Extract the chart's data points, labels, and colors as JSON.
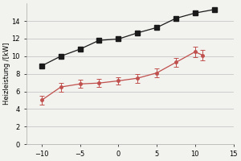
{
  "black_x": [
    -10,
    -7.5,
    -5,
    -2.5,
    0,
    2.5,
    5,
    7.5,
    10,
    12.5
  ],
  "black_y": [
    8.9,
    10.0,
    10.8,
    11.8,
    11.95,
    12.65,
    13.25,
    14.3,
    14.9,
    15.3
  ],
  "black_color": "#1a1a1a",
  "black_marker": "s",
  "black_markersize": 4,
  "red_x": [
    -10,
    -7.5,
    -5,
    -2.5,
    0,
    2.5,
    5,
    7.5,
    10,
    11
  ],
  "red_y": [
    5.0,
    6.5,
    6.85,
    6.95,
    7.2,
    7.5,
    8.1,
    9.3,
    10.5,
    10.1
  ],
  "red_yerr_low": [
    0.5,
    0.5,
    0.45,
    0.45,
    0.4,
    0.5,
    0.5,
    0.5,
    0.6,
    0.6
  ],
  "red_yerr_high": [
    0.5,
    0.5,
    0.45,
    0.45,
    0.4,
    0.5,
    0.5,
    0.5,
    0.6,
    0.6
  ],
  "red_color": "#c0504d",
  "red_marker": "o",
  "red_markersize": 2.5,
  "ylabel": "Heizleistung /[kW]",
  "ylabel_fontsize": 6,
  "xlim": [
    -12,
    15
  ],
  "ylim": [
    0,
    16
  ],
  "xticks": [
    -10,
    -5,
    0,
    5,
    10,
    15
  ],
  "yticks": [
    0,
    2,
    4,
    6,
    8,
    10,
    12,
    14
  ],
  "tick_fontsize": 6,
  "grid_color": "#c8c8c8",
  "background_color": "#f2f2ee"
}
